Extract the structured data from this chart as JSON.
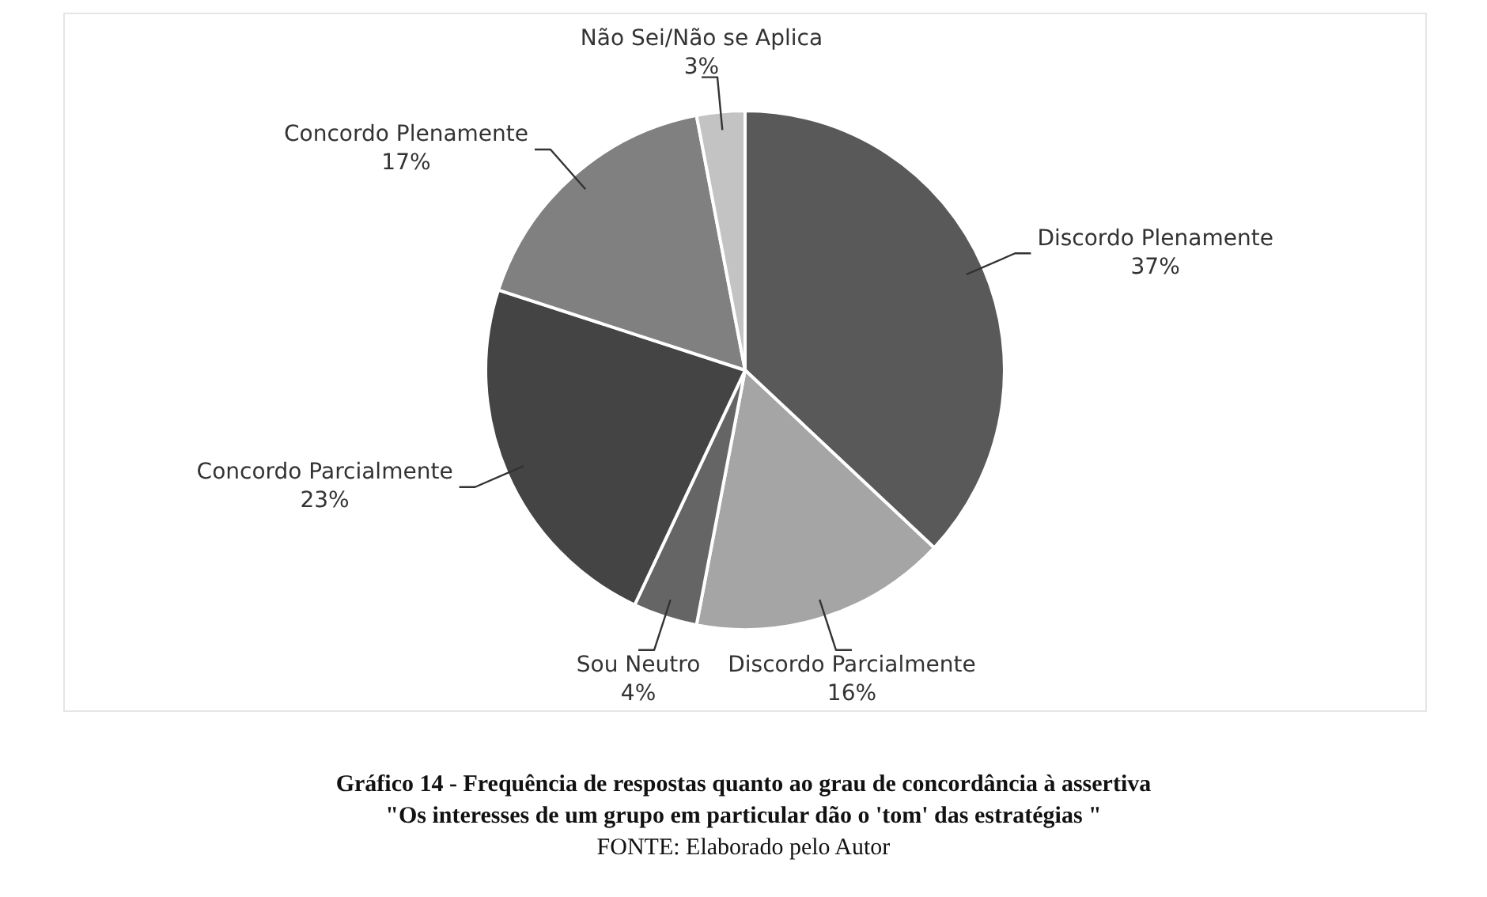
{
  "chart_data": {
    "type": "pie",
    "title": "Gráfico 14 - Frequência de respostas quanto ao grau de concordância à assertiva",
    "subtitle": "\"Os interesses de um grupo em particular dão o 'tom' das estratégias \"",
    "annotations": [
      "FONTE: Elaborado pelo Autor"
    ],
    "categories": [
      "Discordo Plenamente",
      "Discordo Parcialmente",
      "Sou Neutro",
      "Concordo Parcialmente",
      "Concordo Plenamente",
      "Não Sei/Não se Aplica"
    ],
    "values": [
      37,
      16,
      4,
      23,
      17,
      3
    ],
    "value_labels": [
      "37%",
      "16%",
      "4%",
      "23%",
      "17%",
      "3%"
    ],
    "colors": [
      "#595959",
      "#a5a5a5",
      "#656565",
      "#444444",
      "#808080",
      "#c3c3c3"
    ],
    "legend": false
  }
}
